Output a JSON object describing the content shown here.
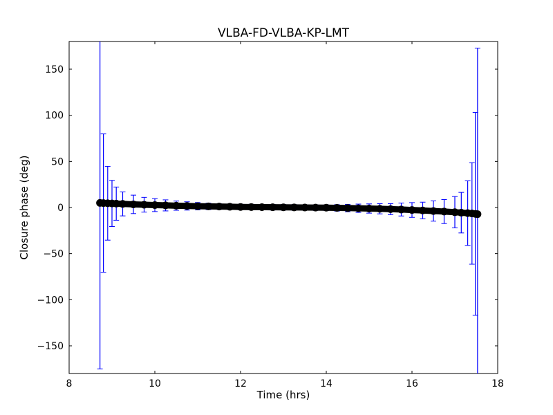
{
  "chart_data": {
    "type": "scatter",
    "title": "VLBA-FD-VLBA-KP-LMT",
    "xlabel": "Time (hrs)",
    "ylabel": "Closure phase (deg)",
    "xlim": [
      8,
      18
    ],
    "ylim": [
      -180,
      180
    ],
    "xticks": [
      8,
      10,
      12,
      14,
      16,
      18
    ],
    "yticks": [
      -150,
      -100,
      -50,
      0,
      50,
      100,
      150
    ],
    "xtick_labels": [
      "8",
      "10",
      "12",
      "14",
      "16",
      "18"
    ],
    "ytick_labels": [
      "−150",
      "−100",
      "−50",
      "0",
      "50",
      "100",
      "150"
    ],
    "grid": false,
    "legend": "none",
    "marker_color": "#000000",
    "errorbar_color": "#0000ff",
    "series": [
      {
        "x": [
          8.72,
          8.8,
          8.9,
          9.0,
          9.1,
          9.25,
          9.5,
          9.75,
          10.0,
          10.25,
          10.5,
          10.75,
          11.0,
          11.25,
          11.5,
          11.75,
          12.0,
          12.25,
          12.5,
          12.75,
          13.0,
          13.25,
          13.5,
          13.75,
          14.0,
          14.25,
          14.5,
          14.75,
          15.0,
          15.25,
          15.5,
          15.75,
          16.0,
          16.25,
          16.5,
          16.75,
          17.0,
          17.15,
          17.3,
          17.4,
          17.48,
          17.53
        ],
        "y": [
          5.0,
          4.8,
          4.6,
          4.4,
          4.2,
          3.9,
          3.4,
          3.0,
          2.6,
          2.3,
          2.0,
          1.7,
          1.4,
          1.2,
          1.0,
          0.8,
          0.6,
          0.5,
          0.4,
          0.3,
          0.2,
          0.1,
          0.0,
          -0.1,
          -0.2,
          -0.4,
          -0.6,
          -0.8,
          -1.1,
          -1.4,
          -1.8,
          -2.2,
          -2.7,
          -3.2,
          -3.8,
          -4.4,
          -5.1,
          -5.6,
          -6.1,
          -6.5,
          -6.9,
          -7.2
        ],
        "yerr": [
          180,
          75,
          40,
          25,
          18,
          13,
          10,
          8,
          7,
          6,
          5,
          4.5,
          4,
          3.5,
          3,
          3,
          3,
          3,
          3,
          3,
          3,
          3,
          3,
          3,
          3,
          3.5,
          4,
          4.5,
          5,
          5.5,
          6,
          7,
          8,
          9,
          11,
          13,
          17,
          22,
          35,
          55,
          110,
          180
        ]
      }
    ]
  }
}
